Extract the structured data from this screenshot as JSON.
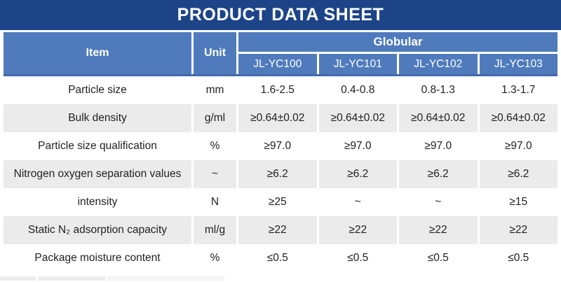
{
  "title": "PRODUCT DATA SHEET",
  "colors": {
    "titlebar_navy": "#1c4487",
    "header_blue": "#4f7bbd",
    "header_underline_blue": "#4069ae",
    "row_alt_gray": "#ebebeb",
    "header_text": "#ffffff",
    "body_text": "#1f1f1f"
  },
  "table": {
    "item_header": "Item",
    "unit_header": "Unit",
    "group_header": "Globular",
    "models": [
      "JL-YC100",
      "JL-YC101",
      "JL-YC102",
      "JL-YC103"
    ],
    "rows": [
      {
        "item": "Particle size",
        "unit": "mm",
        "values": [
          "1.6-2.5",
          "0.4-0.8",
          "0.8-1.3",
          "1.3-1.7"
        ]
      },
      {
        "item": "Bulk density",
        "unit": "g/ml",
        "values": [
          "≥0.64±0.02",
          "≥0.64±0.02",
          "≥0.64±0.02",
          "≥0.64±0.02"
        ]
      },
      {
        "item": "Particle size qualification",
        "unit": "%",
        "values": [
          "≥97.0",
          "≥97.0",
          "≥97.0",
          "≥97.0"
        ]
      },
      {
        "item": "Nitrogen oxygen separation values",
        "unit": "~",
        "values": [
          "≥6.2",
          "≥6.2",
          "≥6.2",
          "≥6.2"
        ]
      },
      {
        "item": "intensity",
        "unit": "N",
        "values": [
          "≥25",
          "~",
          "~",
          "≥15"
        ]
      },
      {
        "item": "Static N₂ adsorption capacity",
        "unit": "ml/g",
        "values": [
          "≥22",
          "≥22",
          "≥22",
          "≥22"
        ]
      },
      {
        "item": "Package moisture content",
        "unit": "%",
        "values": [
          "≤0.5",
          "≤0.5",
          "≤0.5",
          "≤0.5"
        ]
      }
    ]
  }
}
